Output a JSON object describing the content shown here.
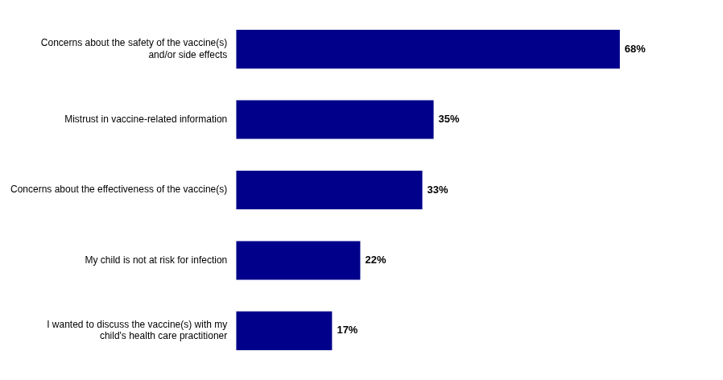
{
  "chart_data": {
    "type": "bar",
    "orientation": "horizontal",
    "categories": [
      "I wanted to discuss the vaccine(s) with my\nchild's health care practitioner",
      "My child is not at risk for infection",
      "Concerns about the effectiveness of the vaccine(s)",
      "Mistrust in vaccine-related information",
      "Concerns about the safety of the vaccine(s)\nand/or side effects"
    ],
    "values": [
      17,
      22,
      33,
      35,
      68
    ],
    "value_labels": [
      "17%",
      "22%",
      "33%",
      "35%",
      "68%"
    ],
    "data_labels": true,
    "color": "#00008B",
    "xlim": [
      0,
      82
    ],
    "grid": false,
    "tick_labels": "y"
  }
}
